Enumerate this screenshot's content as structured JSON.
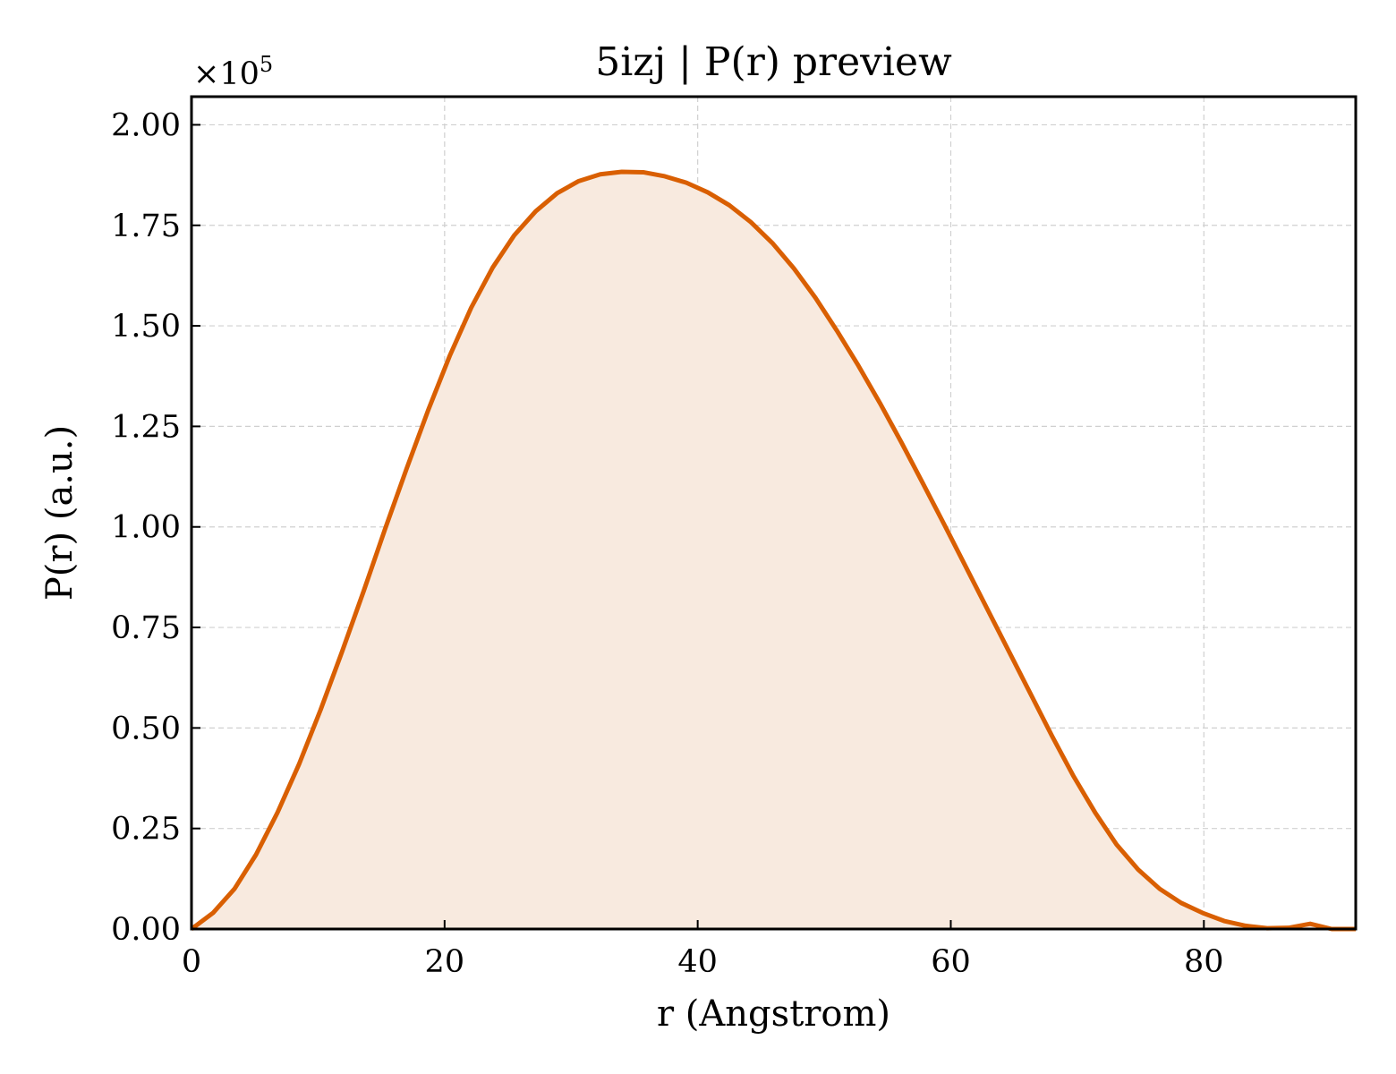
{
  "chart_data": {
    "type": "area",
    "title": "5izj | P(r) preview",
    "xlabel": "r (Angstrom)",
    "ylabel": "P(r) (a.u.)",
    "y_offset_label": "×10",
    "y_offset_exponent": "5",
    "xlim": [
      0,
      92
    ],
    "ylim": [
      0,
      2.07
    ],
    "y_scale_factor": 100000,
    "grid": true,
    "x_ticks": [
      0,
      20,
      40,
      60,
      80
    ],
    "x_tick_labels": [
      "0",
      "20",
      "40",
      "60",
      "80"
    ],
    "y_ticks": [
      0,
      0.25,
      0.5,
      0.75,
      1.0,
      1.25,
      1.5,
      1.75,
      2.0
    ],
    "y_tick_labels": [
      "0.00",
      "0.25",
      "0.50",
      "0.75",
      "1.00",
      "1.25",
      "1.50",
      "1.75",
      "2.00"
    ],
    "series": [
      {
        "line_color": "#d95f02",
        "fill_color": "#f8eadf",
        "x": [
          0,
          1.7,
          3.4,
          5.1,
          6.8,
          8.5,
          10.2,
          11.9,
          13.6,
          15.3,
          17.0,
          18.7,
          20.4,
          22.1,
          23.8,
          25.5,
          27.2,
          28.9,
          30.6,
          32.3,
          34.0,
          35.7,
          37.4,
          39.1,
          40.8,
          42.5,
          44.2,
          45.9,
          47.6,
          49.3,
          51.0,
          52.7,
          54.4,
          56.1,
          57.8,
          59.5,
          61.2,
          62.9,
          64.6,
          66.3,
          68.0,
          69.7,
          71.4,
          73.1,
          74.8,
          76.5,
          78.2,
          79.9,
          81.6,
          83.3,
          85.0,
          86.7,
          88.4,
          90.1,
          92.0
        ],
        "y": [
          0,
          0.04,
          0.1,
          0.185,
          0.29,
          0.41,
          0.545,
          0.69,
          0.84,
          0.995,
          1.145,
          1.29,
          1.425,
          1.545,
          1.645,
          1.725,
          1.785,
          1.83,
          1.86,
          1.877,
          1.883,
          1.882,
          1.872,
          1.856,
          1.832,
          1.8,
          1.758,
          1.706,
          1.643,
          1.57,
          1.488,
          1.401,
          1.308,
          1.21,
          1.108,
          1.005,
          0.9,
          0.795,
          0.69,
          0.585,
          0.48,
          0.38,
          0.29,
          0.21,
          0.148,
          0.1,
          0.065,
          0.04,
          0.02,
          0.008,
          0.002,
          0.003,
          0.013,
          0.0,
          0.0
        ]
      }
    ]
  }
}
